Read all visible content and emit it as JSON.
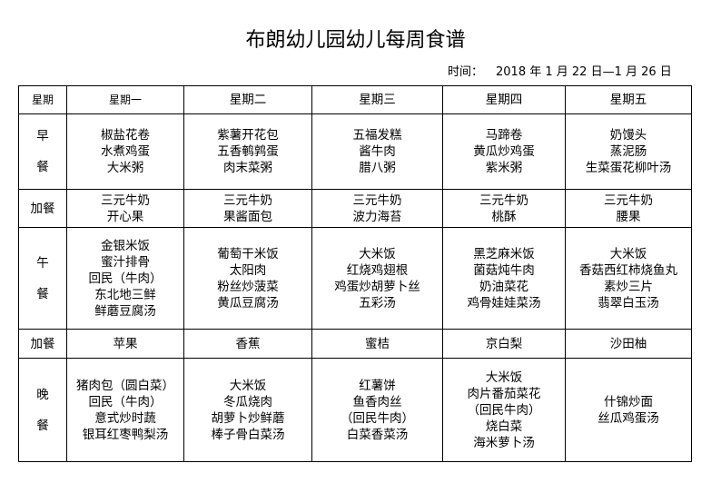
{
  "title": "布朗幼儿园幼儿每周食谱",
  "time_label": "时间：",
  "time_value": "2018 年 1 月 22 日—1 月 26 日",
  "header": [
    "星期",
    "星期一",
    "星期二",
    "星期三",
    "星期四",
    "星期五"
  ],
  "rows": [
    {
      "label": [
        "早",
        "餐"
      ],
      "cells": [
        [
          "椒盐花卷",
          "水煮鸡蛋",
          "大米粥"
        ],
        [
          "紫薯开花包",
          "五香鹌鹑蛋",
          "肉末菜粥"
        ],
        [
          "五福发糕",
          "酱牛肉",
          "腊八粥"
        ],
        [
          "马蹄卷",
          "黄瓜炒鸡蛋",
          "紫米粥"
        ],
        [
          "奶馒头",
          "蒸泥肠",
          "生菜蛋花柳叶汤"
        ]
      ]
    },
    {
      "label": [
        "加餐"
      ],
      "cells": [
        [
          "三元牛奶",
          "开心果"
        ],
        [
          "三元牛奶",
          "果酱面包"
        ],
        [
          "三元牛奶",
          "波力海苔"
        ],
        [
          "三元牛奶",
          "桃酥"
        ],
        [
          "三元牛奶",
          "腰果"
        ]
      ]
    },
    {
      "label": [
        "午",
        "餐"
      ],
      "cells": [
        [
          "金银米饭",
          "蜜汁排骨",
          "回民（牛肉）",
          "东北地三鲜",
          "鲜蘑豆腐汤"
        ],
        [
          "葡萄干米饭",
          "太阳肉",
          "粉丝炒菠菜",
          "黄瓜豆腐汤"
        ],
        [
          "大米饭",
          "红烧鸡翅根",
          "鸡蛋炒胡萝卜丝",
          "五彩汤"
        ],
        [
          "黑芝麻米饭",
          "菌菇炖牛肉",
          "奶油菜花",
          "鸡骨娃娃菜汤"
        ],
        [
          "大米饭",
          "香菇西红柿烧鱼丸",
          "素炒三片",
          "翡翠白玉汤"
        ]
      ]
    },
    {
      "label": [
        "加餐"
      ],
      "cells": [
        [
          "苹果"
        ],
        [
          "香蕉"
        ],
        [
          "蜜桔"
        ],
        [
          "京白梨"
        ],
        [
          "沙田柚"
        ]
      ]
    },
    {
      "label": [
        "晚",
        "餐"
      ],
      "cells": [
        [
          "猪肉包（圆白菜）",
          "回民（牛肉）",
          "意式炒时蔬",
          "银耳红枣鸭梨汤"
        ],
        [
          "大米饭",
          "冬瓜烧肉",
          "胡萝卜炒鲜蘑",
          "棒子骨白菜汤"
        ],
        [
          "红薯饼",
          "鱼香肉丝",
          "（回民牛肉）",
          "白菜香菜汤"
        ],
        [
          "大米饭",
          "肉片番茄菜花",
          "（回民牛肉）",
          "烧白菜",
          "海米萝卜汤"
        ],
        [
          "什锦炒面",
          "丝瓜鸡蛋汤"
        ]
      ]
    }
  ]
}
